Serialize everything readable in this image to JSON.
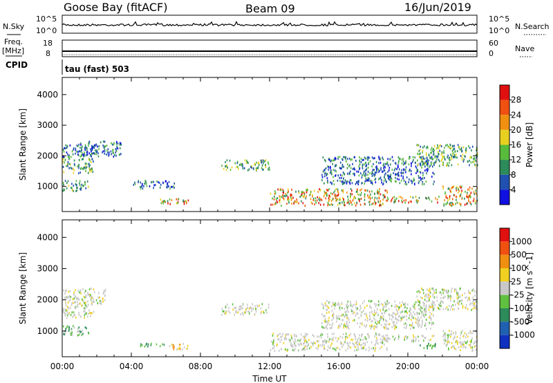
{
  "header": {
    "station": "Goose Bay (fitACF)",
    "beam": "Beam 09",
    "date": "16/Jun/2019"
  },
  "strip_noise": {
    "left_label": "N.Sky",
    "right_label": "N.Search",
    "left_ticks": [
      "10^5",
      "10^0"
    ],
    "right_ticks": [
      "10^5",
      "10^0"
    ]
  },
  "strip_freq": {
    "left_label_1": "Freq.",
    "left_label_2": "[MHz]",
    "right_label": "Nave",
    "left_ticks": [
      "18",
      "8"
    ],
    "right_ticks": [
      "60",
      "0"
    ],
    "cpid_label": "CPID",
    "cpid_text": "tau (fast) 503"
  },
  "chart_data": [
    {
      "type": "heatmap",
      "title": "",
      "quantity": "Power",
      "xlabel": "",
      "ylabel": "Slant Range [km]",
      "x_ticks": [
        "00:00",
        "04:00",
        "08:00",
        "12:00",
        "16:00",
        "20:00",
        "00:00"
      ],
      "x_range_hours": [
        0,
        24
      ],
      "y_ticks": [
        1000,
        2000,
        3000,
        4000
      ],
      "y_range_km": [
        180,
        4560
      ],
      "colorbar": {
        "label": "Power [dB]",
        "ticks": [
          "4",
          "8",
          "12",
          "16",
          "20",
          "24",
          "28"
        ],
        "range": [
          0,
          32
        ],
        "colors": [
          "#1010e0",
          "#2050b0",
          "#2d8a5a",
          "#58bb3c",
          "#e8d020",
          "#f09010",
          "#f05010",
          "#e01010"
        ]
      },
      "regions": [
        {
          "t0": 0.0,
          "t1": 2.0,
          "r0": 1980,
          "r1": 2400,
          "level": "low"
        },
        {
          "t0": 0.0,
          "t1": 1.8,
          "r0": 1450,
          "r1": 1950,
          "level": "mixed"
        },
        {
          "t0": 0.0,
          "t1": 1.5,
          "r0": 880,
          "r1": 1230,
          "level": "mixed"
        },
        {
          "t0": 1.0,
          "t1": 3.4,
          "r0": 2000,
          "r1": 2500,
          "level": "low"
        },
        {
          "t0": 4.1,
          "t1": 6.5,
          "r0": 950,
          "r1": 1220,
          "level": "low"
        },
        {
          "t0": 5.5,
          "t1": 7.3,
          "r0": 450,
          "r1": 650,
          "level": "high"
        },
        {
          "t0": 9.2,
          "t1": 12.0,
          "r0": 1550,
          "r1": 1900,
          "level": "mixed"
        },
        {
          "t0": 12.0,
          "t1": 18.8,
          "r0": 400,
          "r1": 950,
          "level": "high"
        },
        {
          "t0": 18.2,
          "t1": 21.8,
          "r0": 500,
          "r1": 700,
          "level": "high"
        },
        {
          "t0": 15.0,
          "t1": 21.5,
          "r0": 1100,
          "r1": 2000,
          "level": "low"
        },
        {
          "t0": 20.5,
          "t1": 24.0,
          "r0": 1700,
          "r1": 2400,
          "level": "mixed"
        },
        {
          "t0": 22.0,
          "t1": 24.0,
          "r0": 400,
          "r1": 1050,
          "level": "high"
        }
      ]
    },
    {
      "type": "heatmap",
      "title": "",
      "quantity": "Velocity",
      "xlabel": "Time UT",
      "ylabel": "Slant Range [km]",
      "x_ticks": [
        "00:00",
        "04:00",
        "08:00",
        "12:00",
        "16:00",
        "20:00",
        "00:00"
      ],
      "x_range_hours": [
        0,
        24
      ],
      "y_ticks": [
        1000,
        2000,
        3000,
        4000
      ],
      "y_range_km": [
        180,
        4560
      ],
      "colorbar": {
        "label": "Velocity [m s^-1]",
        "ticks": [
          "1000",
          "500",
          "100",
          "25",
          "-25",
          "-100",
          "-500",
          "-1000"
        ],
        "colors": [
          "#1030c0",
          "#2060b0",
          "#2d8a5a",
          "#60c040",
          "#c8c8c8",
          "#f0d020",
          "#f09010",
          "#f05010",
          "#e01010"
        ]
      },
      "regions": [
        {
          "t0": 0.0,
          "t1": 2.5,
          "r0": 1900,
          "r1": 2400,
          "level": "gray"
        },
        {
          "t0": 0.0,
          "t1": 1.8,
          "r0": 1450,
          "r1": 1950,
          "level": "gray"
        },
        {
          "t0": 0.0,
          "t1": 1.5,
          "r0": 880,
          "r1": 1230,
          "level": "green"
        },
        {
          "t0": 4.5,
          "t1": 6.0,
          "r0": 520,
          "r1": 640,
          "level": "lightgreen"
        },
        {
          "t0": 6.0,
          "t1": 7.3,
          "r0": 440,
          "r1": 640,
          "level": "orange"
        },
        {
          "t0": 9.2,
          "t1": 12.0,
          "r0": 1550,
          "r1": 1900,
          "level": "gray"
        },
        {
          "t0": 12.0,
          "t1": 18.8,
          "r0": 400,
          "r1": 950,
          "level": "gray"
        },
        {
          "t0": 18.5,
          "t1": 21.5,
          "r0": 700,
          "r1": 900,
          "level": "gray"
        },
        {
          "t0": 20.5,
          "t1": 21.8,
          "r0": 480,
          "r1": 640,
          "level": "lightgreen"
        },
        {
          "t0": 15.0,
          "t1": 21.5,
          "r0": 1100,
          "r1": 2000,
          "level": "gray"
        },
        {
          "t0": 20.5,
          "t1": 24.0,
          "r0": 1700,
          "r1": 2400,
          "level": "gray"
        },
        {
          "t0": 22.0,
          "t1": 24.0,
          "r0": 400,
          "r1": 1050,
          "level": "gray"
        }
      ]
    }
  ]
}
